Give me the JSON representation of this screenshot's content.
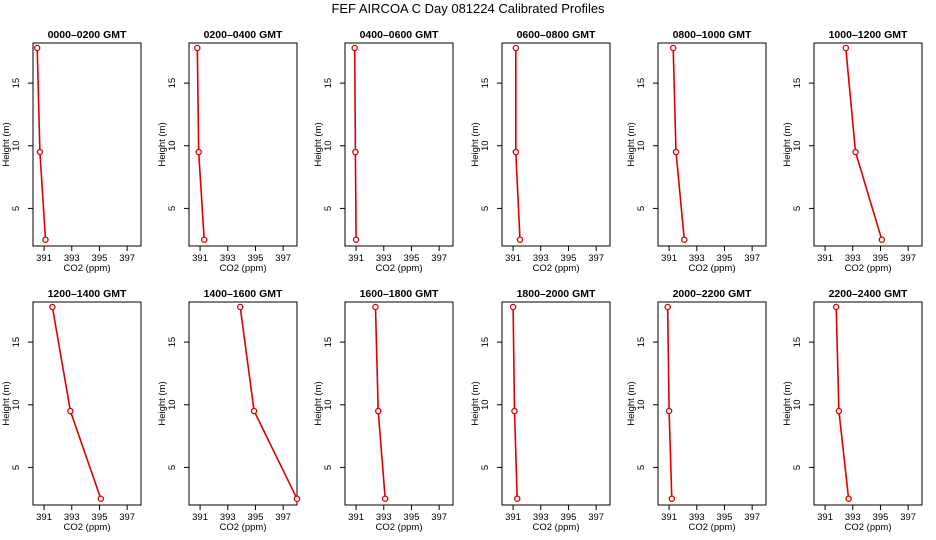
{
  "title": "FEF AIRCOA C  Day 081224  Calibrated Profiles",
  "colors": {
    "series": "#dd0000",
    "axis": "#000000"
  },
  "chart_data": [
    {
      "type": "line",
      "title": "0000–0200 GMT",
      "xlabel": "CO2 (ppm)",
      "ylabel": "Height (m)",
      "xlim": [
        390.2,
        398
      ],
      "ylim": [
        2,
        18.2
      ],
      "xticks": [
        "391",
        "393",
        "395",
        "397"
      ],
      "yticks": [
        "5",
        "10",
        "15"
      ],
      "x": [
        390.5,
        390.7,
        391.1
      ],
      "y": [
        17.8,
        9.5,
        2.5
      ]
    },
    {
      "type": "line",
      "title": "0200–0400 GMT",
      "xlabel": "CO2 (ppm)",
      "ylabel": "Height (m)",
      "xlim": [
        390.2,
        398
      ],
      "ylim": [
        2,
        18.2
      ],
      "xticks": [
        "391",
        "393",
        "395",
        "397"
      ],
      "yticks": [
        "5",
        "10",
        "15"
      ],
      "x": [
        390.8,
        390.9,
        391.3
      ],
      "y": [
        17.8,
        9.5,
        2.5
      ]
    },
    {
      "type": "line",
      "title": "0400–0600 GMT",
      "xlabel": "CO2 (ppm)",
      "ylabel": "Height (m)",
      "xlim": [
        390.2,
        398
      ],
      "ylim": [
        2,
        18.2
      ],
      "xticks": [
        "391",
        "393",
        "395",
        "397"
      ],
      "yticks": [
        "5",
        "10",
        "15"
      ],
      "x": [
        390.9,
        390.95,
        391.0
      ],
      "y": [
        17.8,
        9.5,
        2.5
      ]
    },
    {
      "type": "line",
      "title": "0600–0800 GMT",
      "xlabel": "CO2 (ppm)",
      "ylabel": "Height (m)",
      "xlim": [
        390.2,
        398
      ],
      "ylim": [
        2,
        18.2
      ],
      "xticks": [
        "391",
        "393",
        "395",
        "397"
      ],
      "yticks": [
        "5",
        "10",
        "15"
      ],
      "x": [
        391.2,
        391.2,
        391.5
      ],
      "y": [
        17.8,
        9.5,
        2.5
      ]
    },
    {
      "type": "line",
      "title": "0800–1000 GMT",
      "xlabel": "CO2 (ppm)",
      "ylabel": "Height (m)",
      "xlim": [
        390.2,
        398
      ],
      "ylim": [
        2,
        18.2
      ],
      "xticks": [
        "391",
        "393",
        "395",
        "397"
      ],
      "yticks": [
        "5",
        "10",
        "15"
      ],
      "x": [
        391.3,
        391.5,
        392.1
      ],
      "y": [
        17.8,
        9.5,
        2.5
      ]
    },
    {
      "type": "line",
      "title": "1000–1200 GMT",
      "xlabel": "CO2 (ppm)",
      "ylabel": "Height (m)",
      "xlim": [
        390.2,
        398
      ],
      "ylim": [
        2,
        18.2
      ],
      "xticks": [
        "391",
        "393",
        "395",
        "397"
      ],
      "yticks": [
        "5",
        "10",
        "15"
      ],
      "x": [
        392.5,
        393.2,
        395.1
      ],
      "y": [
        17.8,
        9.5,
        2.5
      ]
    },
    {
      "type": "line",
      "title": "1200–1400 GMT",
      "xlabel": "CO2 (ppm)",
      "ylabel": "Height (m)",
      "xlim": [
        390.2,
        398
      ],
      "ylim": [
        2,
        18.2
      ],
      "xticks": [
        "391",
        "393",
        "395",
        "397"
      ],
      "yticks": [
        "5",
        "10",
        "15"
      ],
      "x": [
        391.6,
        392.9,
        395.1
      ],
      "y": [
        17.8,
        9.5,
        2.5
      ]
    },
    {
      "type": "line",
      "title": "1400–1600 GMT",
      "xlabel": "CO2 (ppm)",
      "ylabel": "Height (m)",
      "xlim": [
        390.2,
        398
      ],
      "ylim": [
        2,
        18.2
      ],
      "xticks": [
        "391",
        "393",
        "395",
        "397"
      ],
      "yticks": [
        "5",
        "10",
        "15"
      ],
      "x": [
        393.9,
        394.9,
        398.0
      ],
      "y": [
        17.8,
        9.5,
        2.5
      ]
    },
    {
      "type": "line",
      "title": "1600–1800 GMT",
      "xlabel": "CO2 (ppm)",
      "ylabel": "Height (m)",
      "xlim": [
        390.2,
        398
      ],
      "ylim": [
        2,
        18.2
      ],
      "xticks": [
        "391",
        "393",
        "395",
        "397"
      ],
      "yticks": [
        "5",
        "10",
        "15"
      ],
      "x": [
        392.4,
        392.6,
        393.1
      ],
      "y": [
        17.8,
        9.5,
        2.5
      ]
    },
    {
      "type": "line",
      "title": "1800–2000 GMT",
      "xlabel": "CO2 (ppm)",
      "ylabel": "Height (m)",
      "xlim": [
        390.2,
        398
      ],
      "ylim": [
        2,
        18.2
      ],
      "xticks": [
        "391",
        "393",
        "395",
        "397"
      ],
      "yticks": [
        "5",
        "10",
        "15"
      ],
      "x": [
        391.0,
        391.1,
        391.3
      ],
      "y": [
        17.8,
        9.5,
        2.5
      ]
    },
    {
      "type": "line",
      "title": "2000–2200 GMT",
      "xlabel": "CO2 (ppm)",
      "ylabel": "Height (m)",
      "xlim": [
        390.2,
        398
      ],
      "ylim": [
        2,
        18.2
      ],
      "xticks": [
        "391",
        "393",
        "395",
        "397"
      ],
      "yticks": [
        "5",
        "10",
        "15"
      ],
      "x": [
        390.9,
        391.0,
        391.2
      ],
      "y": [
        17.8,
        9.5,
        2.5
      ]
    },
    {
      "type": "line",
      "title": "2200–2400 GMT",
      "xlabel": "CO2 (ppm)",
      "ylabel": "Height (m)",
      "xlim": [
        390.2,
        398
      ],
      "ylim": [
        2,
        18.2
      ],
      "xticks": [
        "391",
        "393",
        "395",
        "397"
      ],
      "yticks": [
        "5",
        "10",
        "15"
      ],
      "x": [
        391.8,
        392.0,
        392.7
      ],
      "y": [
        17.8,
        9.5,
        2.5
      ]
    }
  ]
}
